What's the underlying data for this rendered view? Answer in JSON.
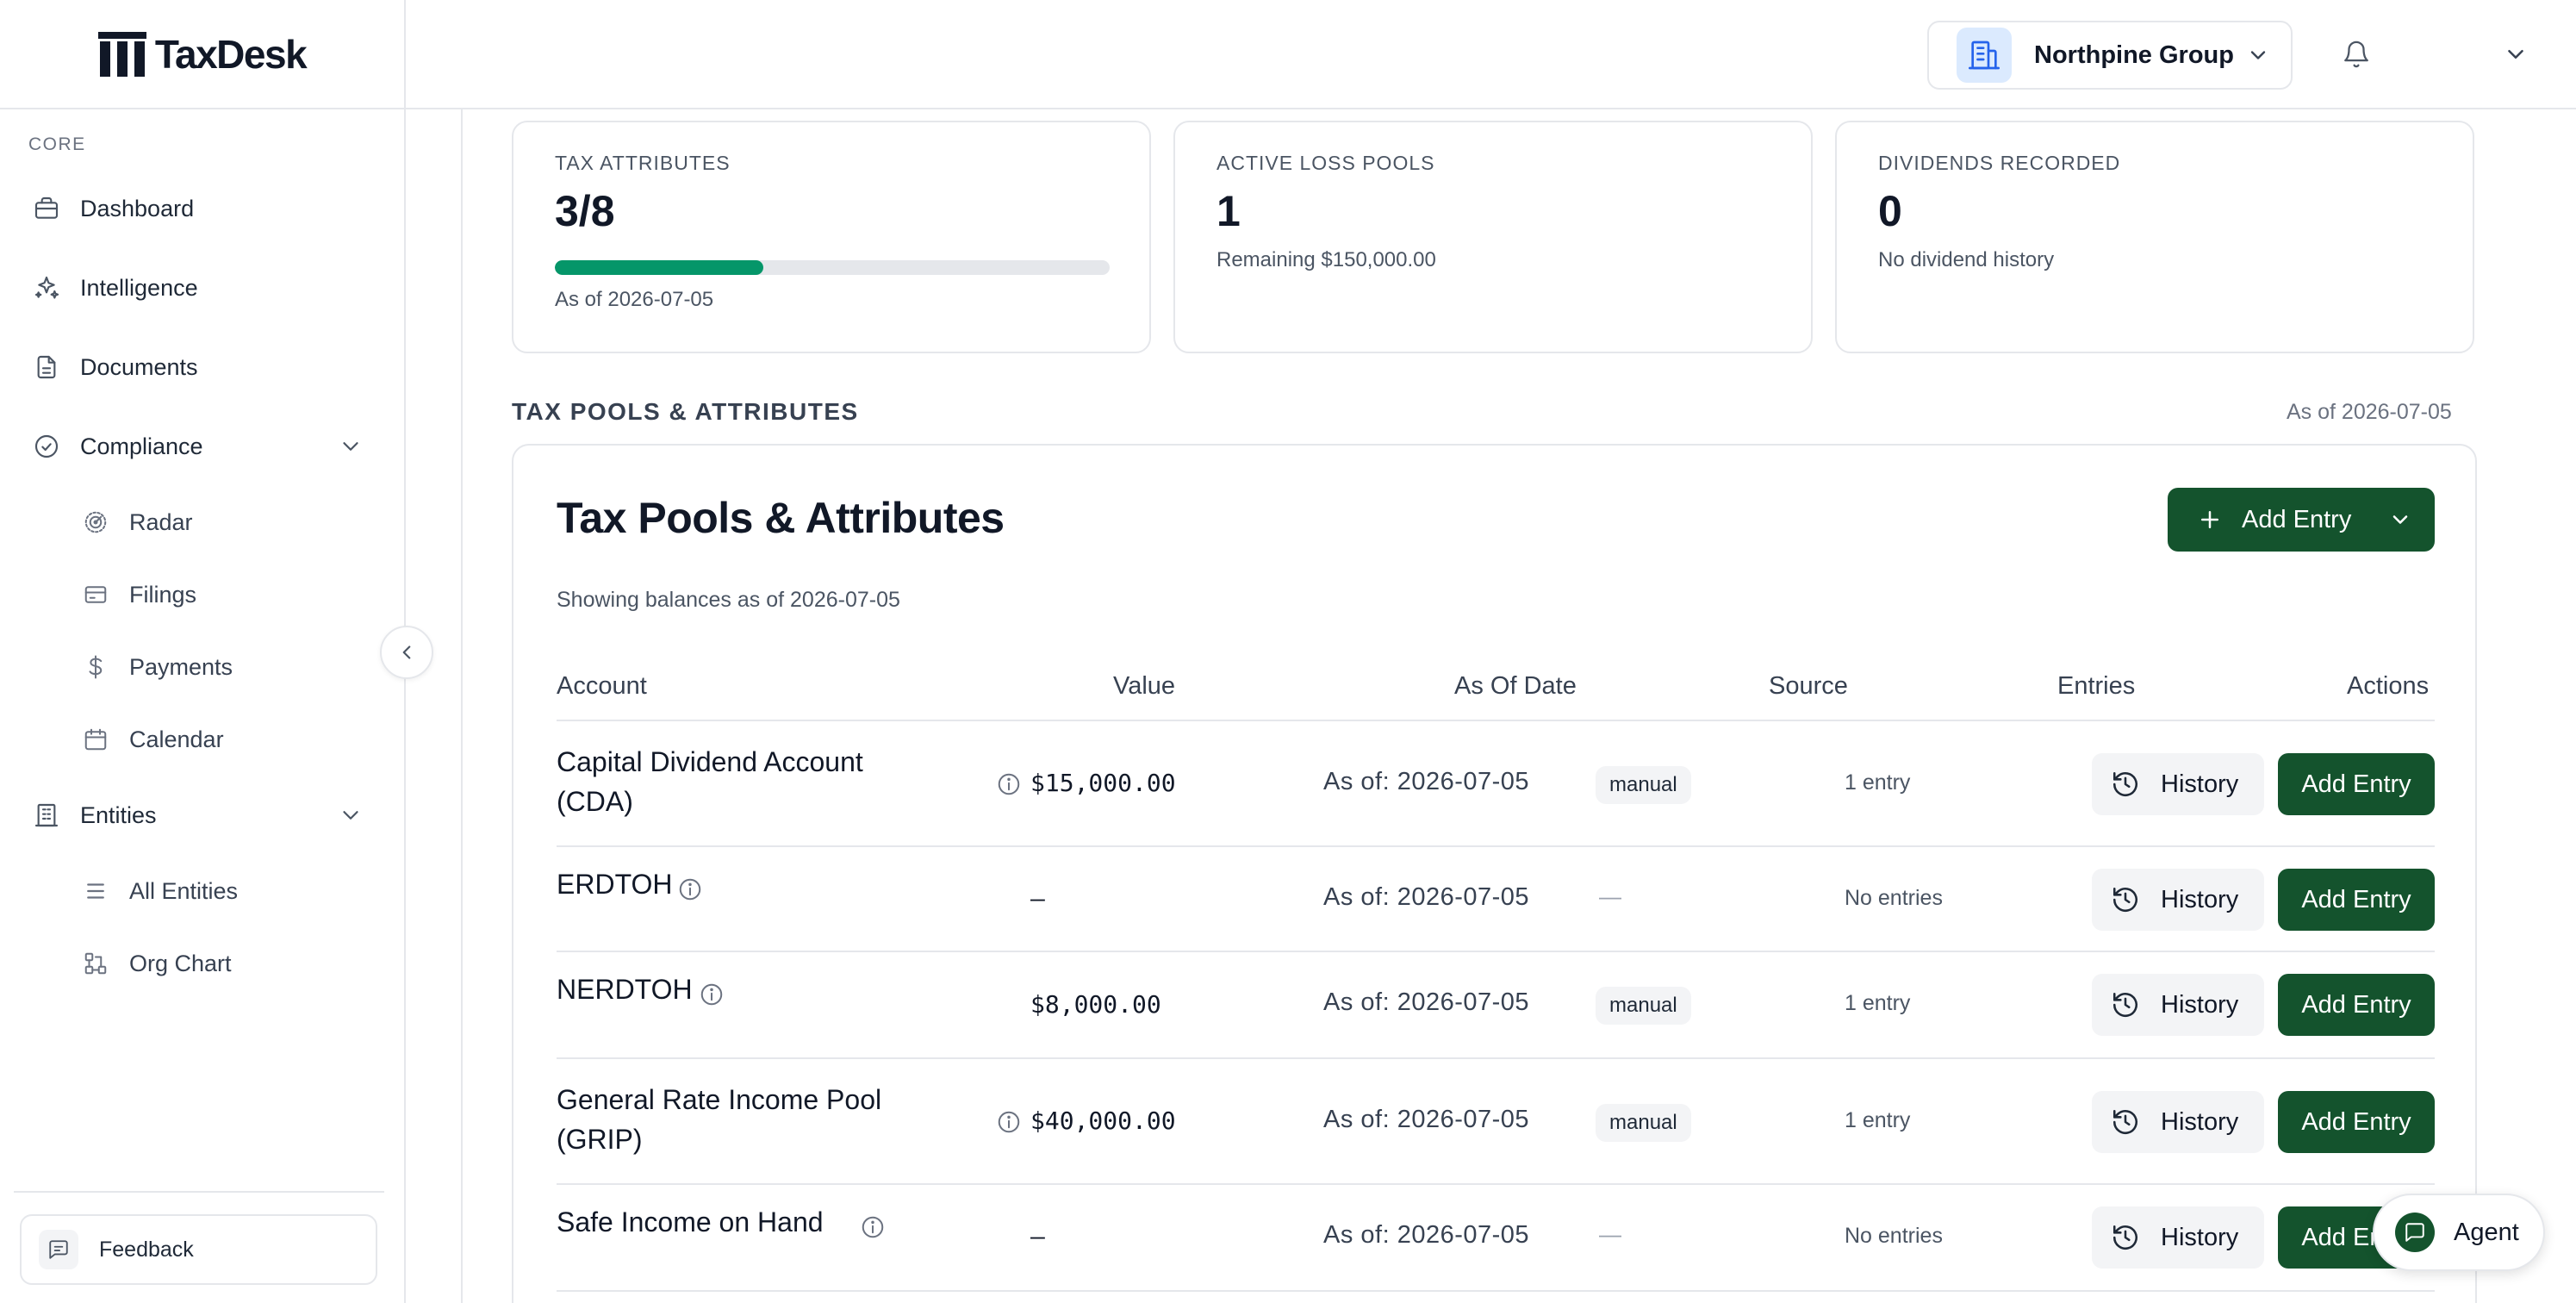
{
  "app": {
    "name": "TaxDesk"
  },
  "sidebar": {
    "section_label": "CORE",
    "items": [
      {
        "label": "Dashboard",
        "icon": "briefcase-icon"
      },
      {
        "label": "Intelligence",
        "icon": "sparkles-icon"
      },
      {
        "label": "Documents",
        "icon": "document-icon"
      },
      {
        "label": "Compliance",
        "icon": "check-circle-icon",
        "expanded": true,
        "children": [
          {
            "label": "Radar",
            "icon": "radar-icon"
          },
          {
            "label": "Filings",
            "icon": "filings-icon"
          },
          {
            "label": "Payments",
            "icon": "dollar-icon"
          },
          {
            "label": "Calendar",
            "icon": "calendar-icon"
          }
        ]
      },
      {
        "label": "Entities",
        "icon": "building-icon",
        "expanded": true,
        "children": [
          {
            "label": "All Entities",
            "icon": "list-icon"
          },
          {
            "label": "Org Chart",
            "icon": "org-chart-icon"
          }
        ]
      }
    ],
    "feedback_label": "Feedback"
  },
  "header": {
    "org_name": "Northpine Group"
  },
  "stats": [
    {
      "kicker": "TAX ATTRIBUTES",
      "value": "3/8",
      "progress": 0.375,
      "sub": "As of 2026-07-05"
    },
    {
      "kicker": "ACTIVE LOSS POOLS",
      "value": "1",
      "sub": "Remaining $150,000.00"
    },
    {
      "kicker": "DIVIDENDS RECORDED",
      "value": "0",
      "sub": "No dividend history"
    }
  ],
  "section": {
    "title": "TAX POOLS & ATTRIBUTES",
    "as_of": "As of 2026-07-05"
  },
  "pools": {
    "title": "Tax Pools & Attributes",
    "subtitle": "Showing balances as of 2026-07-05",
    "add_entry_label": "Add Entry",
    "columns": [
      "Account",
      "Value",
      "As Of Date",
      "Source",
      "Entries",
      "Actions"
    ],
    "history_label": "History",
    "row_add_label": "Add Entry",
    "rows": [
      {
        "account_line1": "Capital Dividend Account",
        "account_line2": "(CDA)",
        "value": "$15,000.00",
        "as_of": "As of: 2026-07-05",
        "source": "manual",
        "entries": "1 entry"
      },
      {
        "account_line1": "ERDTOH",
        "account_line2": "",
        "value": "–",
        "as_of": "As of: 2026-07-05",
        "source": "—",
        "entries": "No entries"
      },
      {
        "account_line1": "NERDTOH",
        "account_line2": "",
        "value": "$8,000.00",
        "as_of": "As of: 2026-07-05",
        "source": "manual",
        "entries": "1 entry"
      },
      {
        "account_line1": "General Rate Income Pool",
        "account_line2": "(GRIP)",
        "value": "$40,000.00",
        "as_of": "As of: 2026-07-05",
        "source": "manual",
        "entries": "1 entry"
      },
      {
        "account_line1": "Safe Income on Hand",
        "account_line2": "",
        "value": "–",
        "as_of": "As of: 2026-07-05",
        "source": "—",
        "entries": "No entries"
      }
    ]
  },
  "agent_label": "Agent",
  "colors": {
    "brand_green": "#14532d",
    "progress_green": "#059669",
    "org_icon_bg": "#dbeafe"
  }
}
